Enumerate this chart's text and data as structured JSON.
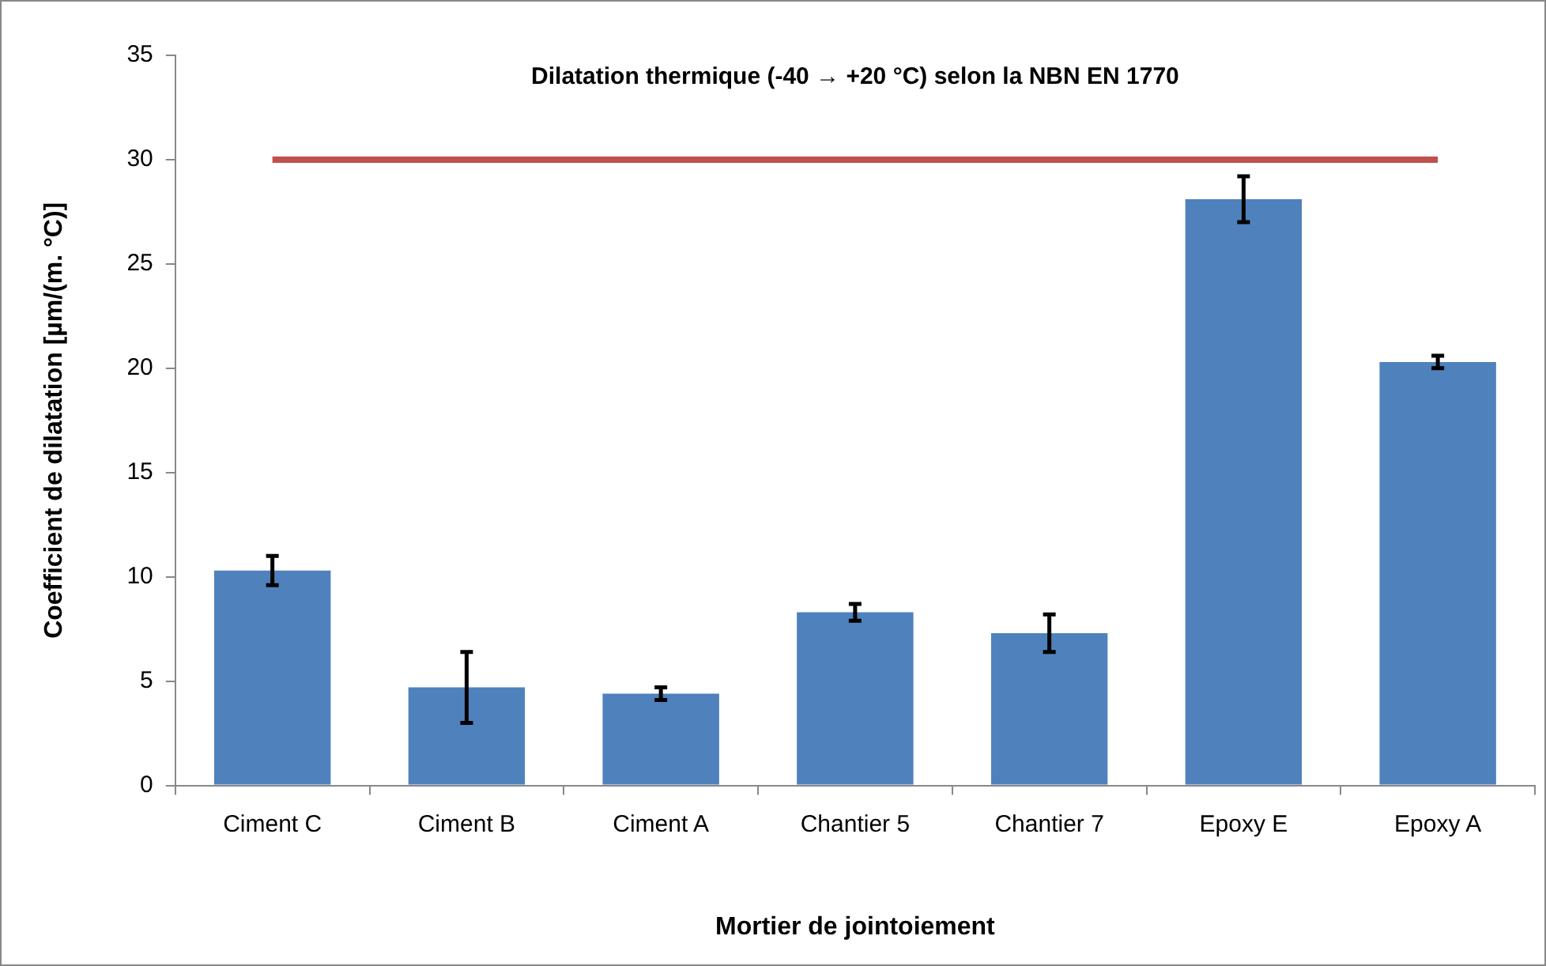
{
  "chart_data": {
    "type": "bar",
    "title": "Dilatation thermique (-40 → +20 °C) selon la NBN EN 1770",
    "xlabel": "Mortier de jointoiement",
    "ylabel": "Coefficient de dilatation [µm/(m. °C)]",
    "categories": [
      "Ciment C",
      "Ciment B",
      "Ciment A",
      "Chantier 5",
      "Chantier 7",
      "Epoxy E",
      "Epoxy A"
    ],
    "values": [
      10.3,
      4.7,
      4.4,
      8.3,
      7.3,
      28.1,
      20.3
    ],
    "errors": [
      0.7,
      1.7,
      0.3,
      0.4,
      0.9,
      1.1,
      0.3
    ],
    "color": "#4f81bd",
    "ylim": [
      0,
      35
    ],
    "yticks": [
      0,
      5,
      10,
      15,
      20,
      25,
      30,
      35
    ],
    "grid": false,
    "ref_lines": [
      {
        "axis": "y",
        "value": 30,
        "color": "#c0504d"
      }
    ]
  }
}
